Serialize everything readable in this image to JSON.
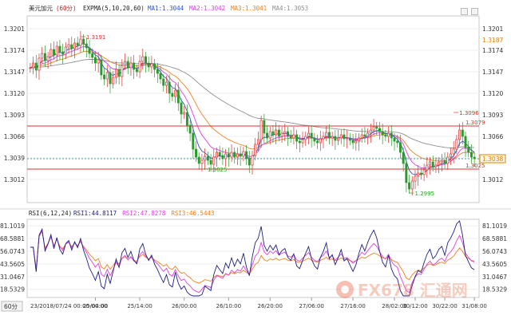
{
  "chart_data": {
    "type": "line",
    "symbol": "美元加元",
    "period": "(60分)",
    "period_button": "60分",
    "price_panel": {
      "indicator_header": "EXPMA(5,10,20,60)",
      "ma_legend": [
        {
          "label": "MA1",
          "value": "1.3044",
          "color": "#3050c8"
        },
        {
          "label": "MA2",
          "value": "1.3042",
          "color": "#e040e0"
        },
        {
          "label": "MA3",
          "value": "1.3041",
          "color": "#f08020"
        },
        {
          "label": "MA4",
          "value": "1.3053",
          "color": "#909090"
        }
      ],
      "y_ticks": [
        "1.3201",
        "1.3174",
        "1.3147",
        "1.3120",
        "1.3093",
        "1.3066",
        "1.3039",
        "1.3012"
      ],
      "ylim": [
        1.2985,
        1.3215
      ],
      "right_labels": [
        {
          "text": "1.3187",
          "value": 1.3187,
          "color": "#e08000"
        },
        {
          "text": "1.3038",
          "value": 1.3038,
          "color": "#e08000",
          "boxed": true
        }
      ],
      "horizontal_lines": [
        {
          "text": "1.3079",
          "value": 1.3079,
          "color": "#d93030"
        },
        {
          "text": "1.3025",
          "value": 1.3025,
          "color": "#d93030"
        }
      ],
      "current_price_line": 1.3038,
      "annotations": [
        {
          "text": "1.3191",
          "index": 17,
          "value": 1.3191,
          "color": "#d93030"
        },
        {
          "text": "1.3025",
          "index": 58,
          "value": 1.3025,
          "color": "#2aa02a"
        },
        {
          "text": "1.2995",
          "index": 128,
          "value": 1.2995,
          "color": "#2aa02a"
        },
        {
          "text": "1.3096",
          "index": 143,
          "value": 1.3096,
          "color": "#d93030"
        }
      ],
      "candles_close": [
        1.3152,
        1.3158,
        1.3149,
        1.3164,
        1.317,
        1.3161,
        1.3166,
        1.3175,
        1.3168,
        1.3179,
        1.3172,
        1.3169,
        1.3178,
        1.3181,
        1.3176,
        1.3183,
        1.318,
        1.3188,
        1.3182,
        1.3177,
        1.317,
        1.3165,
        1.3158,
        1.3162,
        1.3143,
        1.3138,
        1.3146,
        1.3132,
        1.314,
        1.315,
        1.3141,
        1.3155,
        1.316,
        1.3152,
        1.3158,
        1.315,
        1.3147,
        1.316,
        1.3166,
        1.3158,
        1.3153,
        1.3157,
        1.315,
        1.3145,
        1.3138,
        1.313,
        1.3134,
        1.312,
        1.3116,
        1.3124,
        1.3108,
        1.3094,
        1.3096,
        1.308,
        1.307,
        1.305,
        1.304,
        1.3032,
        1.3036,
        1.3041,
        1.3036,
        1.3031,
        1.304,
        1.3046,
        1.3042,
        1.3038,
        1.3044,
        1.304,
        1.3046,
        1.304,
        1.3044,
        1.3041,
        1.3047,
        1.3038,
        1.303,
        1.3042,
        1.3056,
        1.3062,
        1.3086,
        1.307,
        1.3064,
        1.3072,
        1.3068,
        1.3074,
        1.3066,
        1.307,
        1.3072,
        1.3066,
        1.3064,
        1.3068,
        1.306,
        1.3058,
        1.3062,
        1.3066,
        1.307,
        1.3064,
        1.306,
        1.3058,
        1.3063,
        1.3066,
        1.3071,
        1.3064,
        1.3066,
        1.3061,
        1.3064,
        1.3068,
        1.3063,
        1.3064,
        1.3061,
        1.3058,
        1.306,
        1.3064,
        1.3068,
        1.3066,
        1.307,
        1.3074,
        1.3078,
        1.3076,
        1.3072,
        1.3068,
        1.3066,
        1.307,
        1.3064,
        1.306,
        1.3058,
        1.3046,
        1.3032,
        1.3008,
        1.3,
        1.301,
        1.3016,
        1.302,
        1.3018,
        1.3024,
        1.303,
        1.3034,
        1.3028,
        1.303,
        1.3034,
        1.3036,
        1.3032,
        1.304,
        1.3044,
        1.305,
        1.3062,
        1.3074,
        1.3066,
        1.3052,
        1.3046,
        1.304,
        1.3038
      ]
    },
    "rsi_panel": {
      "header": "RSI(6,12,24)",
      "legend": [
        {
          "label": "RSI1",
          "value": "44.8117",
          "color": "#202080"
        },
        {
          "label": "RSI2",
          "value": "47.8278",
          "color": "#e040e0"
        },
        {
          "label": "RSI3",
          "value": "46.5443",
          "color": "#f08020"
        }
      ],
      "y_ticks": [
        "81.1019",
        "68.5881",
        "56.0743",
        "43.5605",
        "31.0467",
        "18.5329"
      ],
      "ylim": [
        12,
        86
      ]
    },
    "x_labels": [
      "23/2018/07/24 00:00-00:00",
      "25/04:00",
      "25/14:00",
      "26/00:00",
      "26/10:00",
      "26/20:00",
      "27/06:00",
      "27/16:00",
      "28/02:00",
      "30/12:00",
      "30/22:00",
      "31/08:00"
    ],
    "x_label_index": [
      0,
      22,
      37,
      52,
      67,
      81,
      95,
      109,
      123,
      130,
      140,
      150
    ]
  },
  "watermark": "FX678 汇通网"
}
